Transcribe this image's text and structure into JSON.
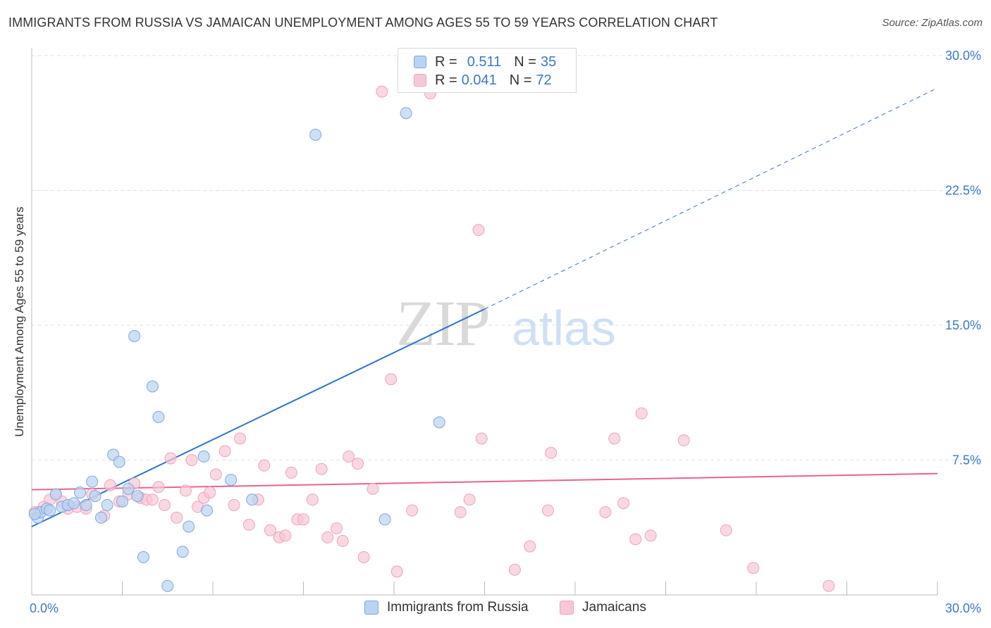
{
  "title": "IMMIGRANTS FROM RUSSIA VS JAMAICAN UNEMPLOYMENT AMONG AGES 55 TO 59 YEARS CORRELATION CHART",
  "source": "Source: ZipAtlas.com",
  "watermark": {
    "zip": "ZIP",
    "atlas": "atlas"
  },
  "legend": {
    "rows": [
      {
        "r_label": "R = ",
        "r_value": "0.511",
        "n_label": "N = ",
        "n_value": "35"
      },
      {
        "r_label": "R = ",
        "r_value": "0.041",
        "n_label": "N = ",
        "n_value": "72"
      }
    ]
  },
  "bottom_legend": {
    "series1": "Immigrants from Russia",
    "series2": "Jamaicans"
  },
  "colors": {
    "blue_fill": "#b9d3f2",
    "blue_stroke": "#7fa8dc",
    "blue_line": "#2f74cc",
    "pink_fill": "#f8c7d6",
    "pink_stroke": "#eda3bb",
    "pink_line": "#e8638f",
    "tick_label": "#3a78c9",
    "grid": "#e2e2e2"
  },
  "chart_data": {
    "type": "scatter",
    "title": "IMMIGRANTS FROM RUSSIA VS JAMAICAN UNEMPLOYMENT AMONG AGES 55 TO 59 YEARS CORRELATION CHART",
    "xlabel": "",
    "ylabel": "Unemployment Among Ages 55 to 59 years",
    "xlim": [
      0,
      30
    ],
    "ylim": [
      0,
      30
    ],
    "x_tick_labels": [
      "0.0%",
      "30.0%"
    ],
    "y_ticks": [
      7.5,
      15.0,
      22.5,
      30.0
    ],
    "y_tick_labels": [
      "7.5%",
      "15.0%",
      "22.5%",
      "30.0%"
    ],
    "grid": true,
    "legend_position": "top-center",
    "series": [
      {
        "name": "Immigrants from Russia",
        "R": 0.511,
        "N": 35,
        "points": [
          [
            0.2,
            4.3
          ],
          [
            0.3,
            4.6
          ],
          [
            0.5,
            4.8
          ],
          [
            0.6,
            4.7
          ],
          [
            0.8,
            5.6
          ],
          [
            1.0,
            4.9
          ],
          [
            1.2,
            5.0
          ],
          [
            1.4,
            5.1
          ],
          [
            1.6,
            5.7
          ],
          [
            1.8,
            5.0
          ],
          [
            2.0,
            6.3
          ],
          [
            2.1,
            5.5
          ],
          [
            2.3,
            4.3
          ],
          [
            2.5,
            5.0
          ],
          [
            2.7,
            7.8
          ],
          [
            2.9,
            7.4
          ],
          [
            3.0,
            5.2
          ],
          [
            3.2,
            5.9
          ],
          [
            3.4,
            14.4
          ],
          [
            3.5,
            5.5
          ],
          [
            3.7,
            2.1
          ],
          [
            4.0,
            11.6
          ],
          [
            4.2,
            9.9
          ],
          [
            4.5,
            0.5
          ],
          [
            5.0,
            2.4
          ],
          [
            5.2,
            3.8
          ],
          [
            5.7,
            7.7
          ],
          [
            5.8,
            4.7
          ],
          [
            6.6,
            6.4
          ],
          [
            7.3,
            5.3
          ],
          [
            9.4,
            25.6
          ],
          [
            11.7,
            4.2
          ],
          [
            12.4,
            26.8
          ],
          [
            13.5,
            9.6
          ],
          [
            0.1,
            4.5
          ]
        ],
        "trend": {
          "x0": 0,
          "y0": 3.8,
          "x1": 15.0,
          "y1": 15.9,
          "dashed_to": [
            30,
            28.2
          ]
        }
      },
      {
        "name": "Jamaicans",
        "R": 0.041,
        "N": 72,
        "points": [
          [
            0.2,
            4.6
          ],
          [
            0.4,
            4.9
          ],
          [
            0.6,
            5.3
          ],
          [
            0.8,
            5.6
          ],
          [
            1.0,
            5.2
          ],
          [
            1.2,
            4.8
          ],
          [
            1.5,
            4.9
          ],
          [
            1.8,
            4.8
          ],
          [
            2.0,
            5.6
          ],
          [
            2.4,
            4.4
          ],
          [
            2.6,
            6.1
          ],
          [
            2.9,
            5.2
          ],
          [
            3.2,
            5.6
          ],
          [
            3.4,
            6.2
          ],
          [
            3.6,
            5.4
          ],
          [
            3.8,
            5.3
          ],
          [
            4.0,
            5.3
          ],
          [
            4.2,
            6.0
          ],
          [
            4.4,
            5.0
          ],
          [
            4.6,
            7.6
          ],
          [
            4.8,
            4.3
          ],
          [
            5.1,
            5.8
          ],
          [
            5.3,
            7.5
          ],
          [
            5.5,
            4.9
          ],
          [
            5.7,
            5.4
          ],
          [
            5.9,
            5.7
          ],
          [
            6.1,
            6.7
          ],
          [
            6.4,
            8.0
          ],
          [
            6.7,
            5.0
          ],
          [
            6.9,
            8.7
          ],
          [
            7.2,
            3.9
          ],
          [
            7.5,
            5.3
          ],
          [
            7.7,
            7.2
          ],
          [
            7.9,
            3.6
          ],
          [
            8.2,
            3.2
          ],
          [
            8.4,
            3.3
          ],
          [
            8.6,
            6.8
          ],
          [
            8.8,
            4.2
          ],
          [
            9.0,
            4.2
          ],
          [
            9.3,
            5.3
          ],
          [
            9.6,
            7.0
          ],
          [
            9.8,
            3.2
          ],
          [
            10.1,
            3.7
          ],
          [
            10.3,
            3.0
          ],
          [
            10.5,
            7.7
          ],
          [
            10.8,
            7.3
          ],
          [
            11.0,
            2.1
          ],
          [
            11.3,
            5.9
          ],
          [
            11.6,
            28.0
          ],
          [
            11.9,
            12.0
          ],
          [
            12.1,
            1.3
          ],
          [
            12.6,
            4.7
          ],
          [
            13.2,
            27.9
          ],
          [
            14.2,
            4.6
          ],
          [
            14.5,
            5.3
          ],
          [
            14.8,
            20.3
          ],
          [
            14.9,
            8.7
          ],
          [
            16.0,
            1.4
          ],
          [
            16.5,
            2.7
          ],
          [
            17.1,
            4.7
          ],
          [
            17.2,
            7.9
          ],
          [
            19.0,
            4.6
          ],
          [
            19.3,
            8.7
          ],
          [
            19.6,
            5.1
          ],
          [
            20.0,
            3.1
          ],
          [
            20.2,
            10.1
          ],
          [
            20.5,
            3.3
          ],
          [
            21.6,
            8.6
          ],
          [
            23.0,
            3.6
          ],
          [
            23.9,
            1.5
          ],
          [
            26.4,
            0.5
          ],
          [
            0.1,
            4.6
          ]
        ],
        "trend": {
          "x0": 0,
          "y0": 5.85,
          "x1": 30,
          "y1": 6.75
        }
      }
    ]
  }
}
